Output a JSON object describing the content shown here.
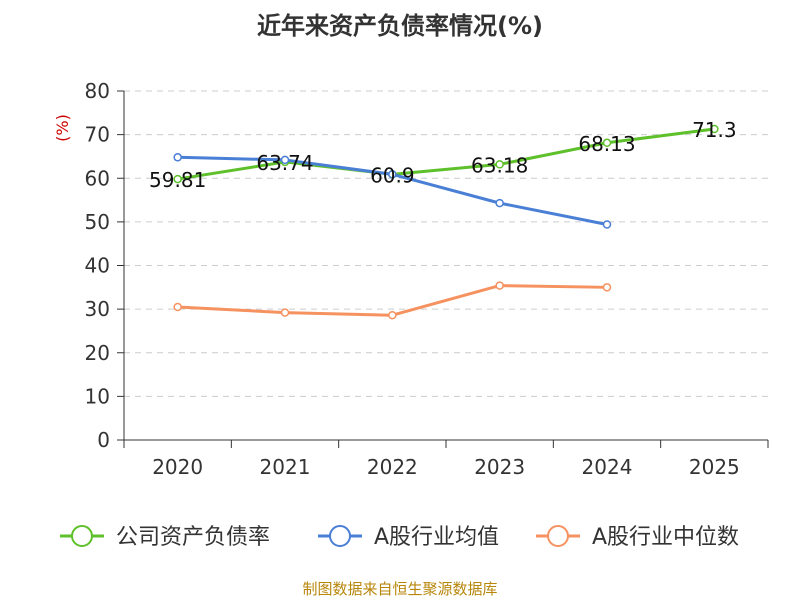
{
  "chart_data": {
    "type": "line",
    "title": "近年来资产负债率情况(%)",
    "ylabel": "(%)",
    "xlabel": "",
    "categories": [
      "2020",
      "2021",
      "2022",
      "2023",
      "2024",
      "2025"
    ],
    "ylim": [
      0,
      80
    ],
    "yticks": [
      0,
      10,
      20,
      30,
      40,
      50,
      60,
      70,
      80
    ],
    "grid": true,
    "legend_position": "bottom",
    "series": [
      {
        "name": "公司资产负债率",
        "color": "#5ec02b",
        "values": [
          59.81,
          63.74,
          60.9,
          63.18,
          68.13,
          71.3
        ],
        "labels": [
          "59.81",
          "63.74",
          "60.9",
          "63.18",
          "68.13",
          "71.3"
        ]
      },
      {
        "name": "A股行业均值",
        "color": "#4a7fd6",
        "values": [
          64.8,
          64.2,
          60.9,
          54.3,
          49.4,
          null
        ]
      },
      {
        "name": "A股行业中位数",
        "color": "#f59260",
        "values": [
          30.5,
          29.2,
          28.6,
          35.4,
          35.0,
          null
        ]
      }
    ]
  },
  "source_note": "制图数据来自恒生聚源数据库"
}
